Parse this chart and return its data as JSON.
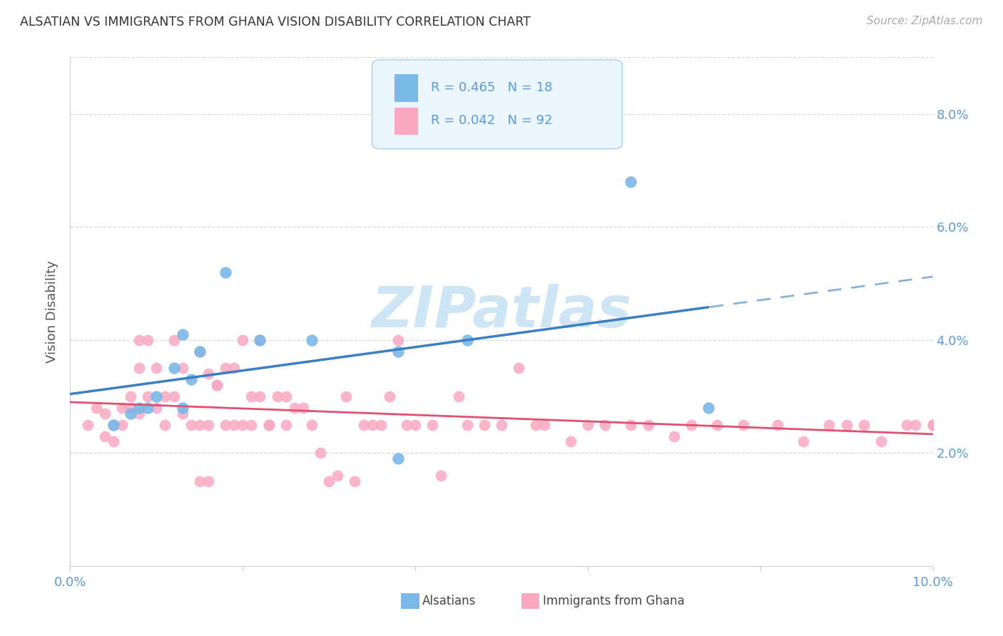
{
  "title": "ALSATIAN VS IMMIGRANTS FROM GHANA VISION DISABILITY CORRELATION CHART",
  "source": "Source: ZipAtlas.com",
  "ylabel": "Vision Disability",
  "xlim": [
    0.0,
    0.1
  ],
  "ylim": [
    0.0,
    0.09
  ],
  "x_ticks": [
    0.0,
    0.02,
    0.04,
    0.06,
    0.08,
    0.1
  ],
  "x_tick_labels": [
    "0.0%",
    "",
    "",
    "",
    "",
    "10.0%"
  ],
  "right_y_ticks": [
    0.02,
    0.04,
    0.06,
    0.08
  ],
  "right_y_tick_labels": [
    "2.0%",
    "4.0%",
    "6.0%",
    "8.0%"
  ],
  "alsatian_color": "#7ab8e8",
  "ghana_color": "#f9a8c0",
  "trendline_blue": "#3a7fc1",
  "trendline_pink": "#e05070",
  "tick_color": "#5b9bd5",
  "grid_color": "#d8d8d8",
  "watermark_color": "#cde5f5",
  "alsatian_R": 0.465,
  "alsatian_N": 18,
  "ghana_R": 0.042,
  "ghana_N": 92,
  "alsatian_x": [
    0.005,
    0.007,
    0.008,
    0.009,
    0.01,
    0.012,
    0.013,
    0.013,
    0.014,
    0.015,
    0.018,
    0.022,
    0.028,
    0.038,
    0.038,
    0.046,
    0.065,
    0.074
  ],
  "alsatian_y": [
    0.025,
    0.027,
    0.028,
    0.028,
    0.03,
    0.035,
    0.041,
    0.028,
    0.033,
    0.038,
    0.052,
    0.04,
    0.04,
    0.038,
    0.019,
    0.04,
    0.068,
    0.028
  ],
  "ghana_x": [
    0.002,
    0.003,
    0.004,
    0.004,
    0.005,
    0.005,
    0.005,
    0.006,
    0.006,
    0.007,
    0.007,
    0.008,
    0.008,
    0.008,
    0.009,
    0.009,
    0.01,
    0.01,
    0.011,
    0.011,
    0.012,
    0.012,
    0.013,
    0.013,
    0.014,
    0.015,
    0.015,
    0.015,
    0.016,
    0.016,
    0.016,
    0.017,
    0.017,
    0.018,
    0.018,
    0.019,
    0.019,
    0.02,
    0.02,
    0.021,
    0.021,
    0.022,
    0.022,
    0.023,
    0.023,
    0.024,
    0.025,
    0.025,
    0.026,
    0.027,
    0.028,
    0.029,
    0.03,
    0.031,
    0.032,
    0.033,
    0.034,
    0.035,
    0.036,
    0.037,
    0.038,
    0.039,
    0.04,
    0.042,
    0.043,
    0.045,
    0.046,
    0.048,
    0.05,
    0.052,
    0.054,
    0.055,
    0.058,
    0.06,
    0.062,
    0.065,
    0.067,
    0.07,
    0.072,
    0.075,
    0.078,
    0.082,
    0.085,
    0.088,
    0.09,
    0.092,
    0.094,
    0.097,
    0.098,
    0.1,
    0.1,
    0.1
  ],
  "ghana_y": [
    0.025,
    0.028,
    0.023,
    0.027,
    0.022,
    0.025,
    0.025,
    0.025,
    0.028,
    0.03,
    0.028,
    0.04,
    0.027,
    0.035,
    0.04,
    0.03,
    0.028,
    0.035,
    0.025,
    0.03,
    0.04,
    0.03,
    0.027,
    0.035,
    0.025,
    0.038,
    0.025,
    0.015,
    0.034,
    0.025,
    0.015,
    0.032,
    0.032,
    0.035,
    0.025,
    0.035,
    0.025,
    0.04,
    0.025,
    0.025,
    0.03,
    0.04,
    0.03,
    0.025,
    0.025,
    0.03,
    0.025,
    0.03,
    0.028,
    0.028,
    0.025,
    0.02,
    0.015,
    0.016,
    0.03,
    0.015,
    0.025,
    0.025,
    0.025,
    0.03,
    0.04,
    0.025,
    0.025,
    0.025,
    0.016,
    0.03,
    0.025,
    0.025,
    0.025,
    0.035,
    0.025,
    0.025,
    0.022,
    0.025,
    0.025,
    0.025,
    0.025,
    0.023,
    0.025,
    0.025,
    0.025,
    0.025,
    0.022,
    0.025,
    0.025,
    0.025,
    0.022,
    0.025,
    0.025,
    0.025,
    0.025,
    0.025
  ],
  "legend_box_color": "#eaf5fc",
  "legend_border_color": "#b5d5ea"
}
